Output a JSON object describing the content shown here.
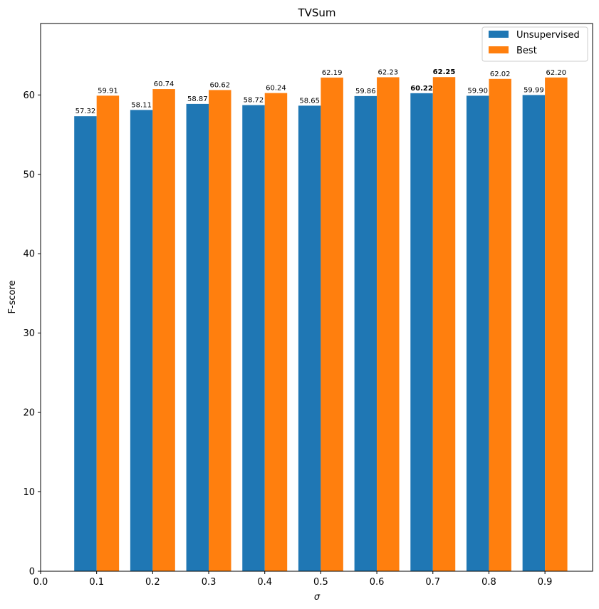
{
  "chart_data": {
    "type": "bar",
    "title": "TVSum",
    "xlabel": "σ",
    "ylabel": "F-score",
    "categories": [
      "0.1",
      "0.2",
      "0.3",
      "0.4",
      "0.5",
      "0.6",
      "0.7",
      "0.8",
      "0.9"
    ],
    "x_ticks": [
      "0.0",
      "0.1",
      "0.2",
      "0.3",
      "0.4",
      "0.5",
      "0.6",
      "0.7",
      "0.8",
      "0.9"
    ],
    "y_ticks": [
      "0",
      "10",
      "20",
      "30",
      "40",
      "50",
      "60"
    ],
    "xlim": [
      0.0,
      0.985
    ],
    "ylim": [
      0,
      69
    ],
    "grid": false,
    "legend_position": "top-right",
    "series": [
      {
        "name": "Unsupervised",
        "color": "#1f77b4",
        "values": [
          57.32,
          58.11,
          58.87,
          58.72,
          58.65,
          59.86,
          60.22,
          59.9,
          59.99
        ],
        "labels": [
          "57.32",
          "58.11",
          "58.87",
          "58.72",
          "58.65",
          "59.86",
          "60.22",
          "59.90",
          "59.99"
        ],
        "bold_label_index": 6
      },
      {
        "name": "Best",
        "color": "#ff7f0e",
        "values": [
          59.91,
          60.74,
          60.62,
          60.24,
          62.19,
          62.23,
          62.25,
          62.02,
          62.2
        ],
        "labels": [
          "59.91",
          "60.74",
          "60.62",
          "60.24",
          "62.19",
          "62.23",
          "62.25",
          "62.02",
          "62.20"
        ],
        "bold_label_index": 6
      }
    ]
  }
}
